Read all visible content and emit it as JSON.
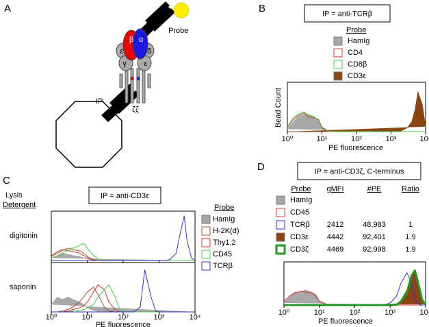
{
  "diagram": {
    "panel_label": "A",
    "probe": "Probe",
    "ip": "IP",
    "beta": "β",
    "alpha": "α",
    "epsilon_left": "ε",
    "delta": "δ",
    "gamma": "γ",
    "epsilon_right": "ε",
    "zeta": "ζζ"
  },
  "chart_data": [
    {
      "type": "line",
      "panel_label": "B",
      "title": "IP = anti-TCRβ",
      "legend_title": "Probe",
      "y_label": "Bead Count",
      "x_label": "PE fluorescence",
      "log_x": true,
      "xlim": [
        1,
        10000
      ],
      "ylim": [
        0,
        100
      ],
      "xticks": [
        {
          "value": 1,
          "label": "10⁰"
        },
        {
          "value": 10,
          "label": "10¹"
        },
        {
          "value": 100,
          "label": "10²"
        },
        {
          "value": 1000,
          "label": "10³"
        },
        {
          "value": 10000,
          "label": "10⁴"
        }
      ],
      "x": [
        1,
        1.5,
        2,
        3,
        4,
        6,
        8,
        10,
        15,
        20,
        30,
        40,
        60,
        80,
        100,
        150,
        200,
        300,
        400,
        600,
        800,
        1000,
        1500,
        2000,
        3000,
        4000,
        5000,
        6000,
        8000,
        10000
      ],
      "series": [
        {
          "name": "HamIg",
          "color": "#a8a8a8",
          "fill": true,
          "values": [
            5,
            20,
            30,
            35,
            35,
            30,
            20,
            10,
            2,
            0,
            0,
            0,
            0,
            0,
            0,
            0,
            0,
            0,
            0,
            0,
            0,
            0,
            0,
            0,
            0,
            0,
            0,
            0,
            0,
            0
          ]
        },
        {
          "name": "CD4",
          "color": "#e03030",
          "fill": false,
          "values": [
            8,
            25,
            32,
            38,
            30,
            28,
            25,
            8,
            1,
            0,
            0,
            0,
            0,
            0,
            0,
            0,
            0,
            0,
            0,
            0,
            0,
            0,
            0,
            0,
            0,
            0,
            0,
            0,
            0,
            0
          ]
        },
        {
          "name": "CD8β",
          "color": "#40d040",
          "fill": false,
          "values": [
            10,
            28,
            35,
            40,
            33,
            30,
            22,
            6,
            1,
            0,
            0,
            0,
            0,
            0,
            0,
            0,
            0,
            0,
            0,
            0,
            0,
            0,
            0,
            0,
            0,
            0,
            0,
            0,
            0,
            0
          ]
        },
        {
          "name": "CD3ε",
          "color": "#8b4513",
          "fill": true,
          "values": [
            0,
            0,
            0,
            0,
            0,
            0,
            0,
            0,
            0,
            0,
            0,
            0,
            0,
            0,
            0,
            0,
            0,
            0,
            0,
            0,
            0,
            0,
            0,
            2,
            8,
            20,
            45,
            80,
            55,
            10
          ]
        }
      ]
    },
    {
      "type": "line",
      "panel_label": "C",
      "title": "IP = anti-CD3ε",
      "legend_title": "Probe",
      "row_header": [
        "Lysis",
        "Detergent"
      ],
      "x_label": "PE fluorescence",
      "log_x": true,
      "xlim": [
        1,
        10000
      ],
      "ylim": [
        0,
        100
      ],
      "xticks": [
        {
          "value": 1,
          "label": "10⁰"
        },
        {
          "value": 10,
          "label": "10¹"
        },
        {
          "value": 100,
          "label": "10²"
        },
        {
          "value": 1000,
          "label": "10³"
        },
        {
          "value": 10000,
          "label": "10⁴"
        }
      ],
      "x": [
        1,
        1.5,
        2,
        3,
        4,
        6,
        8,
        10,
        15,
        20,
        30,
        40,
        60,
        80,
        100,
        150,
        200,
        300,
        400,
        600,
        800,
        1000,
        1500,
        2000,
        3000,
        4000,
        5000,
        6000,
        8000,
        10000
      ],
      "series": [
        {
          "name": "HamIg",
          "color": "#a8a8a8",
          "fill": true
        },
        {
          "name": "H-2K(d)",
          "color": "#a0522d",
          "fill": false
        },
        {
          "name": "Thy1.2",
          "color": "#e03030",
          "fill": false
        },
        {
          "name": "CD45",
          "color": "#40d040",
          "fill": false
        },
        {
          "name": "TCRβ",
          "color": "#3030d0",
          "fill": false
        }
      ],
      "rows": [
        {
          "label": "digitonin",
          "values": [
            [
              5,
              10,
              15,
              12,
              10,
              8,
              5,
              3,
              1,
              0,
              0,
              0,
              0,
              0,
              0,
              0,
              0,
              0,
              0,
              0,
              0,
              0,
              0,
              0,
              0,
              0,
              0,
              0,
              0,
              0
            ],
            [
              8,
              15,
              20,
              25,
              22,
              20,
              15,
              8,
              2,
              0,
              0,
              0,
              0,
              0,
              0,
              0,
              0,
              0,
              0,
              0,
              0,
              0,
              0,
              0,
              0,
              0,
              0,
              0,
              0,
              0
            ],
            [
              10,
              18,
              22,
              20,
              18,
              15,
              10,
              5,
              1,
              0,
              0,
              0,
              0,
              0,
              0,
              0,
              0,
              0,
              0,
              0,
              0,
              0,
              0,
              0,
              0,
              0,
              0,
              0,
              0,
              0
            ],
            [
              5,
              10,
              15,
              20,
              25,
              30,
              35,
              25,
              10,
              3,
              0,
              0,
              0,
              0,
              0,
              0,
              0,
              0,
              0,
              0,
              0,
              0,
              0,
              0,
              0,
              0,
              0,
              0,
              0,
              0
            ],
            [
              0,
              0,
              0,
              0,
              0,
              0,
              0,
              0,
              0,
              0,
              0,
              0,
              0,
              0,
              0,
              0,
              0,
              0,
              0,
              0,
              0,
              0,
              0,
              2,
              15,
              60,
              90,
              40,
              5,
              0
            ]
          ]
        },
        {
          "label": "saponin",
          "values": [
            [
              15,
              30,
              25,
              30,
              25,
              20,
              15,
              8,
              3,
              1,
              0,
              0,
              0,
              0,
              0,
              0,
              0,
              0,
              0,
              0,
              0,
              0,
              0,
              0,
              0,
              0,
              0,
              0,
              0,
              0
            ],
            [
              0,
              0,
              2,
              5,
              10,
              20,
              30,
              40,
              50,
              35,
              10,
              2,
              0,
              0,
              0,
              0,
              0,
              0,
              0,
              0,
              0,
              0,
              0,
              0,
              0,
              0,
              0,
              0,
              0,
              0
            ],
            [
              0,
              0,
              0,
              2,
              5,
              8,
              12,
              20,
              40,
              55,
              45,
              20,
              5,
              0,
              0,
              0,
              0,
              0,
              0,
              0,
              0,
              0,
              0,
              0,
              0,
              0,
              0,
              0,
              0,
              0
            ],
            [
              0,
              0,
              0,
              0,
              2,
              3,
              5,
              8,
              15,
              30,
              45,
              55,
              30,
              5,
              0,
              0,
              0,
              0,
              0,
              0,
              0,
              0,
              0,
              0,
              0,
              0,
              0,
              0,
              0,
              0
            ],
            [
              0,
              0,
              0,
              0,
              0,
              0,
              0,
              0,
              0,
              0,
              0,
              0,
              0,
              0,
              0,
              0,
              0,
              10,
              85,
              30,
              2,
              0,
              0,
              0,
              0,
              0,
              0,
              0,
              0,
              0
            ]
          ]
        }
      ]
    },
    {
      "type": "line",
      "panel_label": "D",
      "title": "IP = anti-CD3ζ, C-terminus",
      "x_label": "PE fluorescence",
      "table_header": [
        "Probe",
        "gMFI",
        "#PE",
        "Ratio"
      ],
      "log_x": true,
      "xlim": [
        1,
        10000
      ],
      "ylim": [
        0,
        100
      ],
      "xticks": [
        {
          "value": 1,
          "label": "10⁰"
        },
        {
          "value": 10,
          "label": "10¹"
        },
        {
          "value": 100,
          "label": "10²"
        },
        {
          "value": 1000,
          "label": "10³"
        },
        {
          "value": 10000,
          "label": "10⁴"
        }
      ],
      "x": [
        1,
        1.5,
        2,
        3,
        4,
        6,
        8,
        10,
        15,
        20,
        30,
        40,
        60,
        80,
        100,
        150,
        200,
        300,
        400,
        600,
        800,
        1000,
        1500,
        2000,
        3000,
        4000,
        5000,
        6000,
        8000,
        10000
      ],
      "series": [
        {
          "name": "HamIg",
          "color": "#a8a8a8",
          "fill": true,
          "values": [
            5,
            20,
            30,
            30,
            35,
            30,
            25,
            10,
            3,
            0,
            0,
            0,
            0,
            0,
            0,
            0,
            0,
            0,
            0,
            0,
            0,
            0,
            0,
            0,
            0,
            0,
            0,
            0,
            0,
            0
          ]
        },
        {
          "name": "CD45",
          "color": "#e03030",
          "fill": false,
          "values": [
            8,
            22,
            28,
            32,
            30,
            28,
            20,
            8,
            2,
            0,
            0,
            0,
            0,
            0,
            0,
            0,
            0,
            0,
            0,
            0,
            0,
            0,
            0,
            0,
            0,
            0,
            0,
            0,
            0,
            0
          ]
        },
        {
          "name": "TCRβ",
          "color": "#3030d0",
          "fill": false,
          "stats": [
            "2412",
            "48,983",
            "1"
          ],
          "values": [
            0,
            0,
            0,
            0,
            0,
            0,
            0,
            0,
            0,
            0,
            0,
            0,
            0,
            0,
            0,
            0,
            0,
            0,
            0,
            0,
            2,
            5,
            20,
            50,
            75,
            50,
            15,
            3,
            0,
            0
          ]
        },
        {
          "name": "CD3ε",
          "color": "#8b4513",
          "fill": true,
          "stats": [
            "4442",
            "92,401",
            "1.9"
          ],
          "values": [
            0,
            0,
            0,
            0,
            0,
            0,
            0,
            0,
            0,
            0,
            0,
            0,
            0,
            0,
            0,
            0,
            0,
            0,
            0,
            0,
            0,
            0,
            2,
            10,
            35,
            70,
            80,
            60,
            15,
            2
          ]
        },
        {
          "name": "CD3ζ",
          "color": "#1f9a1f",
          "fill": false,
          "line_width": 3,
          "stats": [
            "4469",
            "92,998",
            "1.9"
          ],
          "values": [
            0,
            0,
            0,
            0,
            0,
            0,
            0,
            0,
            0,
            0,
            0,
            0,
            0,
            0,
            0,
            0,
            0,
            0,
            0,
            0,
            0,
            0,
            1,
            8,
            30,
            68,
            80,
            55,
            12,
            1
          ]
        }
      ]
    }
  ]
}
